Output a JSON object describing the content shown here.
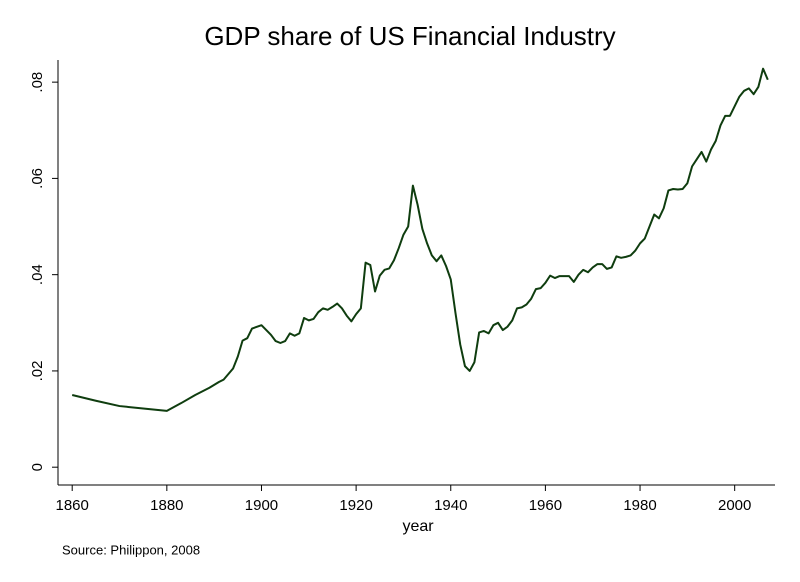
{
  "chart_data": {
    "type": "line",
    "title": "GDP share of US Financial Industry",
    "x_label": "year",
    "source": "Source: Philippon, 2008",
    "x": [
      1860,
      1865,
      1870,
      1875,
      1880,
      1883,
      1886,
      1889,
      1891,
      1892,
      1894,
      1895,
      1896,
      1897,
      1898,
      1900,
      1902,
      1903,
      1904,
      1905,
      1906,
      1907,
      1908,
      1909,
      1910,
      1911,
      1912,
      1913,
      1914,
      1915,
      1916,
      1917,
      1918,
      1919,
      1920,
      1921,
      1922,
      1923,
      1924,
      1925,
      1926,
      1927,
      1928,
      1929,
      1930,
      1931,
      1932,
      1933,
      1934,
      1935,
      1936,
      1937,
      1938,
      1939,
      1940,
      1941,
      1942,
      1943,
      1944,
      1945,
      1946,
      1947,
      1948,
      1949,
      1950,
      1951,
      1952,
      1953,
      1954,
      1955,
      1956,
      1957,
      1958,
      1959,
      1960,
      1961,
      1962,
      1963,
      1964,
      1965,
      1966,
      1967,
      1968,
      1969,
      1970,
      1971,
      1972,
      1973,
      1974,
      1975,
      1976,
      1977,
      1978,
      1979,
      1980,
      1981,
      1982,
      1983,
      1984,
      1985,
      1986,
      1987,
      1988,
      1989,
      1990,
      1991,
      1992,
      1993,
      1994,
      1995,
      1996,
      1997,
      1998,
      1999,
      2000,
      2001,
      2002,
      2003,
      2004,
      2005,
      2006,
      2007
    ],
    "series": [
      {
        "color": "#0f3d0f",
        "values": [
          0.015,
          0.0138,
          0.0127,
          0.0122,
          0.0117,
          0.0133,
          0.015,
          0.0165,
          0.0177,
          0.0182,
          0.0205,
          0.023,
          0.0263,
          0.0268,
          0.0288,
          0.0295,
          0.0275,
          0.0262,
          0.0258,
          0.0262,
          0.0278,
          0.0273,
          0.0278,
          0.031,
          0.0305,
          0.0308,
          0.0322,
          0.033,
          0.0327,
          0.0333,
          0.034,
          0.033,
          0.0315,
          0.0303,
          0.0318,
          0.033,
          0.0425,
          0.042,
          0.0365,
          0.0398,
          0.041,
          0.0413,
          0.043,
          0.0455,
          0.0483,
          0.05,
          0.0585,
          0.0545,
          0.0495,
          0.0465,
          0.044,
          0.0428,
          0.044,
          0.0418,
          0.039,
          0.032,
          0.0255,
          0.021,
          0.02,
          0.0218,
          0.028,
          0.0283,
          0.0278,
          0.0295,
          0.03,
          0.0285,
          0.0292,
          0.0305,
          0.033,
          0.0332,
          0.0338,
          0.035,
          0.037,
          0.0372,
          0.0383,
          0.0398,
          0.0393,
          0.0397,
          0.0397,
          0.0397,
          0.0385,
          0.04,
          0.041,
          0.0405,
          0.0415,
          0.0422,
          0.0422,
          0.0412,
          0.0415,
          0.0438,
          0.0435,
          0.0437,
          0.044,
          0.045,
          0.0465,
          0.0475,
          0.05,
          0.0525,
          0.0517,
          0.0538,
          0.0575,
          0.0578,
          0.0577,
          0.0578,
          0.059,
          0.0625,
          0.064,
          0.0655,
          0.0635,
          0.066,
          0.0678,
          0.071,
          0.073,
          0.073,
          0.075,
          0.077,
          0.0782,
          0.0787,
          0.0775,
          0.079,
          0.0828,
          0.0805
        ]
      }
    ],
    "xlim": [
      1857,
      2010
    ],
    "xticks": [
      1860,
      1880,
      1900,
      1920,
      1940,
      1960,
      1980,
      2000
    ],
    "ylim": [
      -0.0037,
      0.0846
    ],
    "yticks": [
      0,
      {
        "value": 0.02,
        "label": ".02"
      },
      {
        "value": 0.04,
        "label": ".04"
      },
      {
        "value": 0.06,
        "label": ".06"
      },
      {
        "value": 0.08,
        "label": ".08"
      }
    ]
  }
}
